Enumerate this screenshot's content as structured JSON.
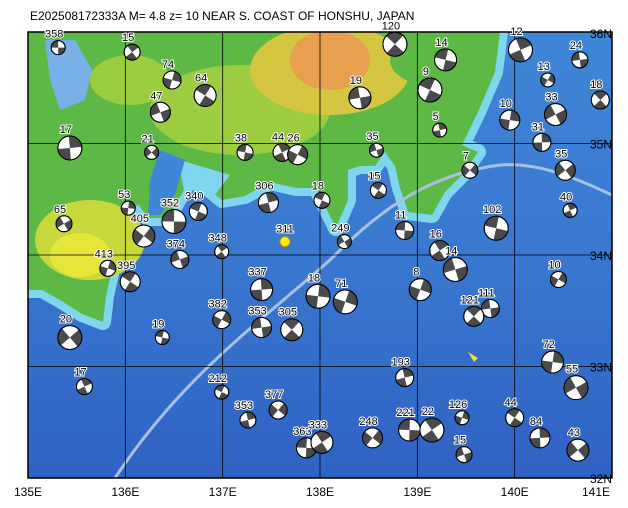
{
  "title": "E202508172333A M= 4.8 z= 10 NEAR S. COAST OF HONSHU, JAPAN",
  "lon_ticks": [
    {
      "value": 135,
      "label": "135E"
    },
    {
      "value": 136,
      "label": "136E"
    },
    {
      "value": 137,
      "label": "137E"
    },
    {
      "value": 138,
      "label": "138E"
    },
    {
      "value": 139,
      "label": "139E"
    },
    {
      "value": 140,
      "label": "140E"
    },
    {
      "value": 141,
      "label": "141E"
    }
  ],
  "lat_ticks": [
    {
      "value": 32,
      "label": "32N"
    },
    {
      "value": 33,
      "label": "33N"
    },
    {
      "value": 34,
      "label": "34N"
    },
    {
      "value": 35,
      "label": "35N"
    },
    {
      "value": 36,
      "label": "36N"
    }
  ],
  "main_event": {
    "label": "311",
    "lon": 137.64,
    "lat": 34.12
  },
  "events": [
    {
      "label": "358",
      "lon": 135.31,
      "lat": 35.86
    },
    {
      "label": "15",
      "lon": 136.07,
      "lat": 35.82
    },
    {
      "label": "74",
      "lon": 136.48,
      "lat": 35.57
    },
    {
      "label": "47",
      "lon": 136.36,
      "lat": 35.28
    },
    {
      "label": "64",
      "lon": 136.82,
      "lat": 35.43
    },
    {
      "label": "17",
      "lon": 135.43,
      "lat": 34.96
    },
    {
      "label": "21",
      "lon": 136.27,
      "lat": 34.92
    },
    {
      "label": "38",
      "lon": 137.23,
      "lat": 34.92
    },
    {
      "label": "44",
      "lon": 137.61,
      "lat": 34.92
    },
    {
      "label": "26",
      "lon": 137.77,
      "lat": 34.9
    },
    {
      "label": "19",
      "lon": 138.41,
      "lat": 35.41
    },
    {
      "label": "120",
      "lon": 138.77,
      "lat": 35.89
    },
    {
      "label": "53",
      "lon": 136.03,
      "lat": 34.42
    },
    {
      "label": "65",
      "lon": 135.37,
      "lat": 34.28
    },
    {
      "label": "340",
      "lon": 136.75,
      "lat": 34.39
    },
    {
      "label": "306",
      "lon": 137.47,
      "lat": 34.47
    },
    {
      "label": "405",
      "lon": 136.19,
      "lat": 34.17
    },
    {
      "label": "352",
      "lon": 136.5,
      "lat": 34.3
    },
    {
      "label": "348",
      "lon": 136.99,
      "lat": 34.03
    },
    {
      "label": "413",
      "lon": 135.82,
      "lat": 33.88
    },
    {
      "label": "374",
      "lon": 136.56,
      "lat": 33.96
    },
    {
      "label": "395",
      "lon": 136.05,
      "lat": 33.76
    },
    {
      "label": "337",
      "lon": 137.4,
      "lat": 33.69
    },
    {
      "label": "20",
      "lon": 135.43,
      "lat": 33.26
    },
    {
      "label": "19",
      "lon": 136.38,
      "lat": 33.26
    },
    {
      "label": "17",
      "lon": 135.58,
      "lat": 32.82
    },
    {
      "label": "382",
      "lon": 136.99,
      "lat": 33.42
    },
    {
      "label": "353",
      "lon": 137.4,
      "lat": 33.35
    },
    {
      "label": "305",
      "lon": 137.71,
      "lat": 33.33
    },
    {
      "label": "18",
      "lon": 137.98,
      "lat": 33.63
    },
    {
      "label": "249",
      "lon": 138.25,
      "lat": 34.12
    },
    {
      "label": "18",
      "lon": 138.02,
      "lat": 34.49
    },
    {
      "label": "193",
      "lon": 138.87,
      "lat": 32.9
    },
    {
      "label": "248",
      "lon": 138.54,
      "lat": 32.36
    },
    {
      "label": "221",
      "lon": 138.92,
      "lat": 32.43
    },
    {
      "label": "22",
      "lon": 139.15,
      "lat": 32.43
    },
    {
      "label": "126",
      "lon": 139.46,
      "lat": 32.54
    },
    {
      "label": "15",
      "lon": 139.48,
      "lat": 32.21
    },
    {
      "label": "44",
      "lon": 140.0,
      "lat": 32.54
    },
    {
      "label": "84",
      "lon": 140.26,
      "lat": 32.36
    },
    {
      "label": "43",
      "lon": 140.65,
      "lat": 32.25
    },
    {
      "label": "102",
      "lon": 139.81,
      "lat": 34.24
    },
    {
      "label": "40",
      "lon": 140.57,
      "lat": 34.4
    },
    {
      "label": "10",
      "lon": 140.45,
      "lat": 33.78
    },
    {
      "label": "111",
      "lon": 139.75,
      "lat": 33.52
    },
    {
      "label": "121",
      "lon": 139.58,
      "lat": 33.45
    },
    {
      "label": "72",
      "lon": 140.39,
      "lat": 33.04
    },
    {
      "label": "55",
      "lon": 140.63,
      "lat": 32.81
    },
    {
      "label": "212",
      "lon": 136.99,
      "lat": 32.77
    },
    {
      "label": "353",
      "lon": 137.26,
      "lat": 32.52
    },
    {
      "label": "377",
      "lon": 137.57,
      "lat": 32.61
    },
    {
      "label": "363",
      "lon": 137.86,
      "lat": 32.27
    },
    {
      "label": "333",
      "lon": 138.02,
      "lat": 32.32
    },
    {
      "label": "71",
      "lon": 138.26,
      "lat": 33.58
    },
    {
      "label": "35",
      "lon": 138.58,
      "lat": 34.94
    },
    {
      "label": "15",
      "lon": 138.6,
      "lat": 34.58
    },
    {
      "label": "31",
      "lon": 140.28,
      "lat": 35.01
    },
    {
      "label": "35",
      "lon": 140.52,
      "lat": 34.76
    },
    {
      "label": "14",
      "lon": 139.29,
      "lat": 35.75
    },
    {
      "label": "12",
      "lon": 140.06,
      "lat": 35.84
    },
    {
      "label": "13",
      "lon": 140.34,
      "lat": 35.57
    },
    {
      "label": "24",
      "lon": 140.67,
      "lat": 35.75
    },
    {
      "label": "18",
      "lon": 140.88,
      "lat": 35.39
    },
    {
      "label": "10",
      "lon": 139.95,
      "lat": 35.21
    },
    {
      "label": "33",
      "lon": 140.42,
      "lat": 35.26
    },
    {
      "label": "9",
      "lon": 139.13,
      "lat": 35.48
    },
    {
      "label": "5",
      "lon": 139.23,
      "lat": 35.12
    },
    {
      "label": "7",
      "lon": 139.54,
      "lat": 34.76
    },
    {
      "label": "11",
      "lon": 138.87,
      "lat": 34.22
    },
    {
      "label": "16",
      "lon": 139.23,
      "lat": 34.04
    },
    {
      "label": "8",
      "lon": 139.03,
      "lat": 33.69
    },
    {
      "label": "14",
      "lon": 139.39,
      "lat": 33.87
    }
  ]
}
